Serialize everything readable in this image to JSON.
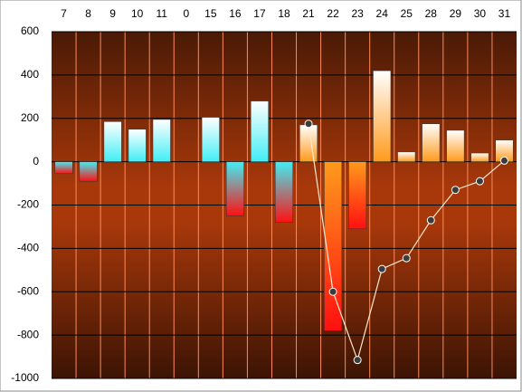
{
  "chart_data": {
    "type": "bar",
    "categories": [
      "7",
      "8",
      "9",
      "10",
      "11",
      "0",
      "15",
      "16",
      "17",
      "18",
      "21",
      "22",
      "23",
      "24",
      "25",
      "28",
      "29",
      "30",
      "31"
    ],
    "series": [
      {
        "type": "bar",
        "values": [
          -55,
          -90,
          185,
          150,
          195,
          0,
          205,
          -250,
          280,
          -280,
          170,
          -780,
          -310,
          420,
          45,
          175,
          145,
          40,
          100
        ],
        "colors": [
          "#40eef5",
          "#40eef5",
          "#40eef5",
          "#40eef5",
          "#40eef5",
          "#40eef5",
          "#40eef5",
          "#40eef5",
          "#40eef5",
          "#40eef5",
          "#ff9a1c",
          "#ff9a1c",
          "#ff9a1c",
          "#ff9a1c",
          "#ff9a1c",
          "#ff9a1c",
          "#ff9a1c",
          "#ff9a1c",
          "#ff9a1c"
        ],
        "negative_color": "#ff1010"
      },
      {
        "type": "line",
        "color": "#ffe8cc",
        "marker_color": "#3c3c3c",
        "values": [
          null,
          null,
          null,
          null,
          null,
          null,
          null,
          null,
          null,
          null,
          175,
          -600,
          -915,
          -495,
          -445,
          -270,
          -130,
          -90,
          5
        ]
      }
    ],
    "ylim": [
      -1000,
      600
    ],
    "yticks": [
      -1000,
      -800,
      -600,
      -400,
      -200,
      0,
      200,
      400,
      600
    ],
    "grid": true
  }
}
